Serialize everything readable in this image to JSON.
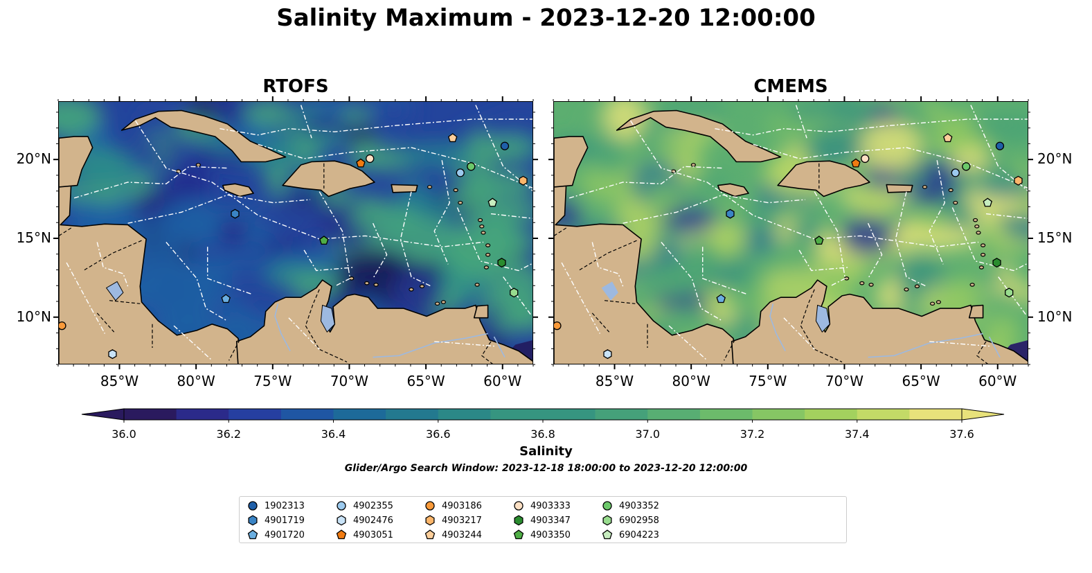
{
  "title": "Salinity Maximum - 2023-12-20 12:00:00",
  "panels": [
    {
      "title": "RTOFS"
    },
    {
      "title": "CMEMS"
    }
  ],
  "axes": {
    "lon_ticks": [
      "85°W",
      "80°W",
      "75°W",
      "70°W",
      "65°W",
      "60°W"
    ],
    "lat_ticks": [
      "20°N",
      "15°N",
      "10°N"
    ]
  },
  "colorbar": {
    "label": "Salinity",
    "ticks": [
      "36.0",
      "36.2",
      "36.4",
      "36.6",
      "36.8",
      "37.0",
      "37.2",
      "37.4",
      "37.6"
    ],
    "min": 35.9,
    "max": 37.7,
    "colors": [
      "#2a1a5e",
      "#2b2a8a",
      "#263fa0",
      "#1f56a3",
      "#1d6a99",
      "#23798f",
      "#2b8887",
      "#369580",
      "#45a17a",
      "#58ae73",
      "#6cbb6b",
      "#86c664",
      "#a3d15e",
      "#c3da67",
      "#e8e27b"
    ]
  },
  "search_window": "Glider/Argo Search Window: 2023-12-18 18:00:00 to 2023-12-20 12:00:00",
  "legend": [
    {
      "id": "1902313",
      "marker": "circle",
      "color": "#1f5fa8"
    },
    {
      "id": "4901719",
      "marker": "hexagon",
      "color": "#3a84c5"
    },
    {
      "id": "4901720",
      "marker": "pentagon",
      "color": "#6aaee0"
    },
    {
      "id": "4902355",
      "marker": "circle",
      "color": "#9ccaee"
    },
    {
      "id": "4902476",
      "marker": "hexagon",
      "color": "#c9e3f7"
    },
    {
      "id": "4903051",
      "marker": "pentagon",
      "color": "#f07b12"
    },
    {
      "id": "4903186",
      "marker": "circle",
      "color": "#f99a3a"
    },
    {
      "id": "4903217",
      "marker": "hexagon",
      "color": "#fcb66b"
    },
    {
      "id": "4903244",
      "marker": "pentagon",
      "color": "#fdcf9b"
    },
    {
      "id": "4903333",
      "marker": "circle",
      "color": "#fde0c4"
    },
    {
      "id": "4903347",
      "marker": "hexagon",
      "color": "#2a8c2f"
    },
    {
      "id": "4903350",
      "marker": "pentagon",
      "color": "#4fae46"
    },
    {
      "id": "4903352",
      "marker": "circle",
      "color": "#6cc86a"
    },
    {
      "id": "6902958",
      "marker": "hexagon",
      "color": "#98dc8e"
    },
    {
      "id": "6904223",
      "marker": "pentagon",
      "color": "#c7edbf"
    }
  ],
  "floats": [
    {
      "id": "1902313",
      "lon": -59.9,
      "lat": 20.9
    },
    {
      "id": "4901719",
      "lon": -77.5,
      "lat": 16.6
    },
    {
      "id": "4901720",
      "lon": -78.1,
      "lat": 11.2
    },
    {
      "id": "4902355",
      "lon": -62.8,
      "lat": 19.2
    },
    {
      "id": "4902476",
      "lon": -85.5,
      "lat": 7.7
    },
    {
      "id": "4903051",
      "lon": -69.3,
      "lat": 19.8
    },
    {
      "id": "4903186",
      "lon": -88.8,
      "lat": 9.5
    },
    {
      "id": "4903217",
      "lon": -58.7,
      "lat": 18.7
    },
    {
      "id": "4903244",
      "lon": -63.3,
      "lat": 21.4
    },
    {
      "id": "4903333",
      "lon": -68.7,
      "lat": 20.1
    },
    {
      "id": "4903347",
      "lon": -60.1,
      "lat": 13.5
    },
    {
      "id": "4903350",
      "lon": -71.7,
      "lat": 14.9
    },
    {
      "id": "4903352",
      "lon": -62.1,
      "lat": 19.6
    },
    {
      "id": "6902958",
      "lon": -59.3,
      "lat": 11.6
    },
    {
      "id": "6904223",
      "lon": -60.7,
      "lat": 17.3
    }
  ],
  "extent": {
    "lon_min": -89,
    "lon_max": -58,
    "lat_min": 7,
    "lat_max": 23.7
  }
}
